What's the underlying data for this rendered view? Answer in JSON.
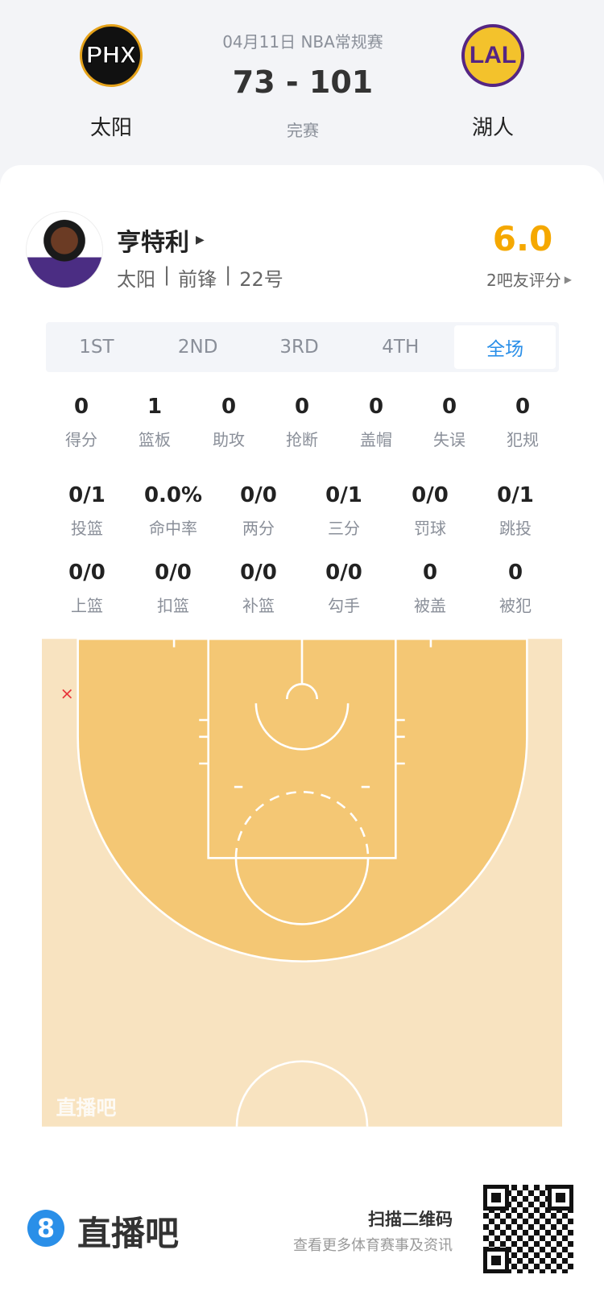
{
  "match": {
    "date": "04月11日 NBA常规赛",
    "score": "73 - 101",
    "status": "完赛",
    "home": {
      "abbr": "PHX",
      "name": "太阳",
      "color": "#1d1160"
    },
    "away": {
      "abbr": "LAL",
      "name": "湖人",
      "color": "#552583"
    }
  },
  "player": {
    "name": "亨特利",
    "team": "太阳",
    "position": "前锋",
    "number": "22号",
    "rating": "6.0",
    "rating_label": "2吧友评分",
    "rating_color": "#f5a800"
  },
  "tabs": [
    {
      "label": "1ST"
    },
    {
      "label": "2ND"
    },
    {
      "label": "3RD"
    },
    {
      "label": "4TH"
    },
    {
      "label": "全场",
      "active": true
    }
  ],
  "stats_row1": [
    {
      "v": "0",
      "l": "得分"
    },
    {
      "v": "1",
      "l": "篮板"
    },
    {
      "v": "0",
      "l": "助攻"
    },
    {
      "v": "0",
      "l": "抢断"
    },
    {
      "v": "0",
      "l": "盖帽"
    },
    {
      "v": "0",
      "l": "失误"
    },
    {
      "v": "0",
      "l": "犯规"
    }
  ],
  "stats_row2": [
    {
      "v": "0/1",
      "l": "投篮"
    },
    {
      "v": "0.0%",
      "l": "命中率"
    },
    {
      "v": "0/0",
      "l": "两分"
    },
    {
      "v": "0/1",
      "l": "三分"
    },
    {
      "v": "0/0",
      "l": "罚球"
    },
    {
      "v": "0/1",
      "l": "跳投"
    }
  ],
  "stats_row3": [
    {
      "v": "0/0",
      "l": "上篮"
    },
    {
      "v": "0/0",
      "l": "扣篮"
    },
    {
      "v": "0/0",
      "l": "补篮"
    },
    {
      "v": "0/0",
      "l": "勾手"
    },
    {
      "v": "0",
      "l": "被盖"
    },
    {
      "v": "0",
      "l": "被犯"
    }
  ],
  "shot_chart": {
    "shots": [
      {
        "result": "miss",
        "marker": "×",
        "color": "#e8353a"
      }
    ],
    "watermark": "直播吧"
  },
  "footer": {
    "brand": "直播吧",
    "brand_mark": "8",
    "brand_color": "#2a8fe8",
    "qr_title": "扫描二维码",
    "qr_sub": "查看更多体育赛事及资讯"
  }
}
